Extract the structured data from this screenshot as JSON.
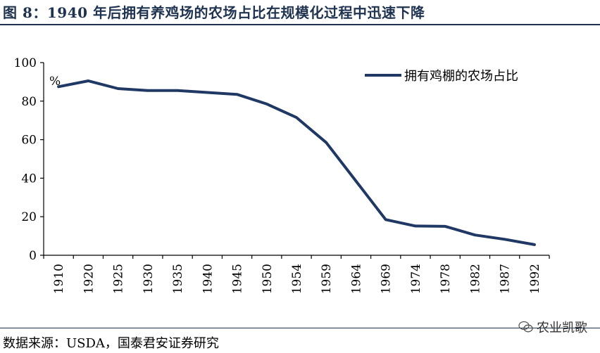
{
  "title": "图 8：1940 年后拥有养鸡场的农场占比在规模化过程中迅速下降",
  "source": "数据来源：USDA，国泰君安证券研究",
  "watermark": "农业凯歌",
  "colors": {
    "series": "#1f3864",
    "title": "#1f3350",
    "axis": "#000000"
  },
  "chart_data": {
    "type": "line",
    "title": "",
    "xlabel": "",
    "ylabel": "%",
    "categories": [
      "1910",
      "1920",
      "1925",
      "1930",
      "1935",
      "1940",
      "1945",
      "1950",
      "1954",
      "1959",
      "1964",
      "1969",
      "1974",
      "1978",
      "1982",
      "1987",
      "1992"
    ],
    "series": [
      {
        "name": "拥有鸡棚的农场占比",
        "values": [
          87.5,
          90.5,
          86.5,
          85.5,
          85.5,
          84.5,
          83.5,
          78.5,
          71.5,
          58.5,
          38.5,
          18.5,
          15.2,
          15.0,
          10.5,
          8.3,
          5.5
        ]
      }
    ],
    "ylim": [
      0,
      100
    ],
    "yticks": [
      0,
      20,
      40,
      60,
      80,
      100
    ],
    "grid": false,
    "legend_position": "top-right"
  }
}
